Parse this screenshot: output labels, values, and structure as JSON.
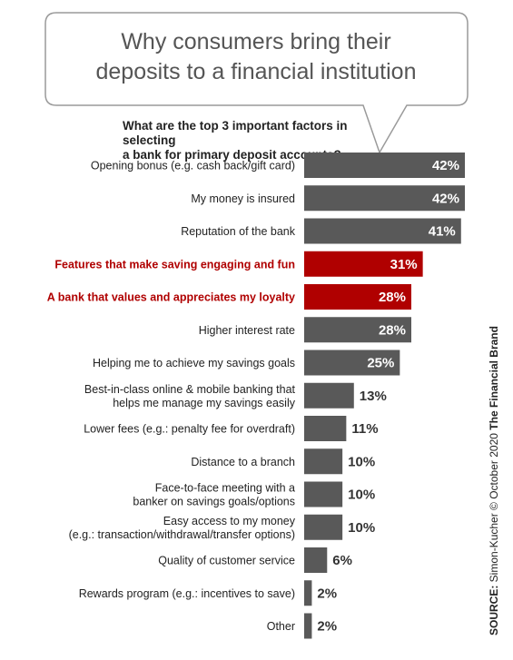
{
  "header": {
    "title_line1": "Why consumers bring their",
    "title_line2": "deposits to a financial institution"
  },
  "question": {
    "line1": "What are the top 3 important factors in selecting",
    "line2": "a bank for primary deposit accounts?"
  },
  "source": {
    "label": "SOURCE:",
    "text": " Simon-Kucher © October 2020 ",
    "brand": "The Financial Brand"
  },
  "colors": {
    "bar": "#595959",
    "highlight": "#b00000",
    "label_highlight": "#b00000"
  },
  "chart_data": {
    "type": "bar",
    "orientation": "horizontal",
    "title": "What are the top 3 important factors in selecting a bank for primary deposit accounts?",
    "categories": [
      [
        "Opening bonus (e.g. cash back/gift card)"
      ],
      [
        "My money is insured"
      ],
      [
        "Reputation of the bank"
      ],
      [
        "Features that make saving engaging and fun"
      ],
      [
        "A bank that values and appreciates my loyalty"
      ],
      [
        "Higher interest rate"
      ],
      [
        "Helping me to achieve my savings goals"
      ],
      [
        "Best-in-class online & mobile banking that",
        "helps me manage my savings easily"
      ],
      [
        "Lower fees (e.g.: penalty fee for overdraft)"
      ],
      [
        "Distance to a branch"
      ],
      [
        "Face-to-face meeting with a",
        "banker on savings goals/options"
      ],
      [
        "Easy access to my money",
        "(e.g.: transaction/withdrawal/transfer options)"
      ],
      [
        "Quality of customer service"
      ],
      [
        "Rewards program (e.g.: incentives to save)"
      ],
      [
        "Other"
      ]
    ],
    "values": [
      42,
      42,
      41,
      31,
      28,
      28,
      25,
      13,
      11,
      10,
      10,
      10,
      6,
      2,
      2
    ],
    "value_labels": [
      "42%",
      "42%",
      "41%",
      "31%",
      "28%",
      "28%",
      "25%",
      "13%",
      "11%",
      "10%",
      "10%",
      "10%",
      "6%",
      "2%",
      "2%"
    ],
    "highlighted": [
      false,
      false,
      false,
      true,
      true,
      false,
      false,
      false,
      false,
      false,
      false,
      false,
      false,
      false,
      false
    ],
    "xlim": [
      0,
      42
    ],
    "unit": "%"
  }
}
